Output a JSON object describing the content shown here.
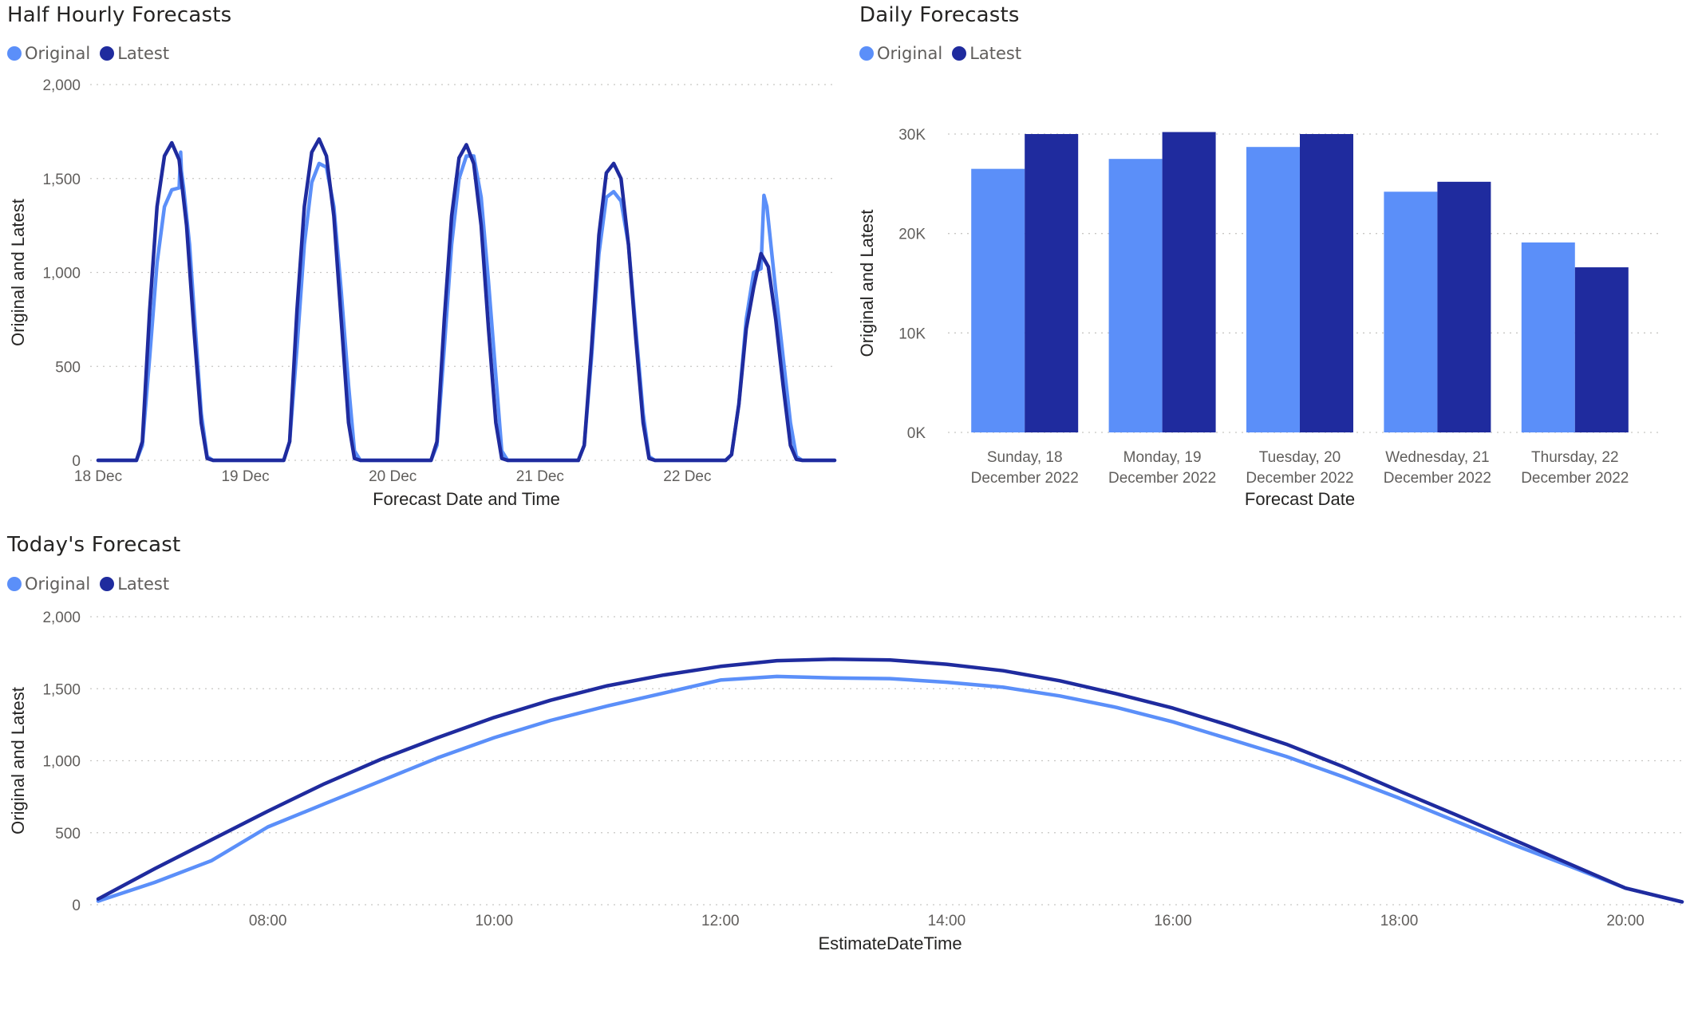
{
  "colors": {
    "original": "#5b8ff9",
    "latest": "#1f2b9e"
  },
  "chart_data": [
    {
      "id": "half_hourly",
      "type": "line",
      "title": "Half Hourly Forecasts",
      "legend": [
        "Original",
        "Latest"
      ],
      "legend_position": "top-left",
      "xlabel": "Forecast Date and Time",
      "ylabel": "Original and Latest",
      "ylim": [
        0,
        2000
      ],
      "yticks": [
        0,
        500,
        1000,
        1500,
        2000
      ],
      "ytick_labels": [
        "0",
        "500",
        "1,000",
        "1,500",
        "2,000"
      ],
      "xticks": [
        0,
        1,
        2,
        3,
        4
      ],
      "xtick_labels": [
        "18 Dec",
        "19 Dec",
        "20 Dec",
        "21 Dec",
        "22 Dec"
      ],
      "xlim": [
        0,
        5.0
      ],
      "grid": true,
      "series": [
        {
          "name": "Original",
          "x": [
            0,
            0.26,
            0.3,
            0.35,
            0.4,
            0.45,
            0.5,
            0.55,
            0.56,
            0.565,
            0.58,
            0.62,
            0.66,
            0.7,
            0.74,
            0.78,
            0.85,
            1.0,
            1.26,
            1.3,
            1.35,
            1.4,
            1.45,
            1.5,
            1.55,
            1.6,
            1.65,
            1.7,
            1.74,
            1.78,
            1.85,
            2.0,
            2.26,
            2.3,
            2.35,
            2.4,
            2.45,
            2.5,
            2.55,
            2.6,
            2.65,
            2.7,
            2.74,
            2.78,
            2.85,
            3.0,
            3.26,
            3.3,
            3.35,
            3.4,
            3.45,
            3.5,
            3.55,
            3.6,
            3.65,
            3.7,
            3.74,
            3.78,
            3.85,
            4.0,
            4.26,
            4.3,
            4.35,
            4.4,
            4.45,
            4.5,
            4.52,
            4.54,
            4.56,
            4.6,
            4.65,
            4.7,
            4.74,
            4.78,
            4.85,
            5.0
          ],
          "y": [
            0,
            0,
            80,
            550,
            1050,
            1350,
            1440,
            1450,
            1640,
            1540,
            1450,
            1150,
            700,
            250,
            20,
            0,
            0,
            0,
            0,
            100,
            600,
            1150,
            1480,
            1580,
            1560,
            1350,
            900,
            400,
            50,
            0,
            0,
            0,
            0,
            80,
            600,
            1150,
            1500,
            1620,
            1620,
            1400,
            950,
            450,
            50,
            0,
            0,
            0,
            0,
            80,
            550,
            1100,
            1400,
            1430,
            1380,
            1150,
            700,
            250,
            20,
            0,
            0,
            0,
            0,
            30,
            300,
            750,
            1000,
            1020,
            1410,
            1350,
            1200,
            900,
            550,
            200,
            20,
            0,
            0,
            0
          ]
        },
        {
          "name": "Latest",
          "x": [
            0,
            0.26,
            0.3,
            0.35,
            0.4,
            0.45,
            0.5,
            0.55,
            0.6,
            0.65,
            0.7,
            0.74,
            0.78,
            0.85,
            1.0,
            1.26,
            1.3,
            1.35,
            1.4,
            1.45,
            1.5,
            1.55,
            1.6,
            1.65,
            1.7,
            1.74,
            1.78,
            1.85,
            2.0,
            2.26,
            2.3,
            2.35,
            2.4,
            2.45,
            2.5,
            2.55,
            2.6,
            2.65,
            2.7,
            2.74,
            2.78,
            2.85,
            3.0,
            3.26,
            3.3,
            3.35,
            3.4,
            3.45,
            3.5,
            3.55,
            3.6,
            3.65,
            3.7,
            3.74,
            3.78,
            3.85,
            4.0,
            4.26,
            4.3,
            4.35,
            4.4,
            4.45,
            4.5,
            4.55,
            4.6,
            4.65,
            4.7,
            4.74,
            4.78,
            4.85,
            5.0
          ],
          "y": [
            0,
            0,
            100,
            800,
            1350,
            1620,
            1690,
            1600,
            1250,
            700,
            200,
            10,
            0,
            0,
            0,
            0,
            100,
            800,
            1350,
            1640,
            1710,
            1620,
            1300,
            750,
            200,
            10,
            0,
            0,
            0,
            0,
            100,
            750,
            1300,
            1610,
            1680,
            1580,
            1250,
            700,
            200,
            10,
            0,
            0,
            0,
            0,
            80,
            600,
            1200,
            1530,
            1580,
            1500,
            1150,
            650,
            200,
            10,
            0,
            0,
            0,
            0,
            30,
            300,
            700,
            920,
            1100,
            1030,
            750,
            400,
            80,
            5,
            0,
            0,
            0
          ]
        }
      ]
    },
    {
      "id": "daily",
      "type": "bar",
      "title": "Daily Forecasts",
      "legend": [
        "Original",
        "Latest"
      ],
      "legend_position": "top-left",
      "xlabel": "Forecast Date",
      "ylabel": "Original and Latest",
      "ylim": [
        0,
        30000
      ],
      "yticks": [
        0,
        10000,
        20000,
        30000
      ],
      "ytick_labels": [
        "0K",
        "10K",
        "20K",
        "30K"
      ],
      "grid": true,
      "categories": [
        [
          "Sunday, 18",
          "December 2022"
        ],
        [
          "Monday, 19",
          "December 2022"
        ],
        [
          "Tuesday, 20",
          "December 2022"
        ],
        [
          "Wednesday, 21",
          "December 2022"
        ],
        [
          "Thursday, 22",
          "December 2022"
        ]
      ],
      "series": [
        {
          "name": "Original",
          "values": [
            26500,
            27500,
            28700,
            24200,
            19100
          ]
        },
        {
          "name": "Latest",
          "values": [
            30000,
            30200,
            30000,
            25200,
            16600
          ]
        }
      ]
    },
    {
      "id": "today",
      "type": "line",
      "title": "Today's Forecast",
      "legend": [
        "Original",
        "Latest"
      ],
      "legend_position": "top-left",
      "xlabel": "EstimateDateTime",
      "ylabel": "Original and Latest",
      "ylim": [
        0,
        2000
      ],
      "yticks": [
        0,
        500,
        1000,
        1500,
        2000
      ],
      "ytick_labels": [
        "0",
        "500",
        "1,000",
        "1,500",
        "2,000"
      ],
      "xlim": [
        6.5,
        20.5
      ],
      "xticks": [
        8,
        10,
        12,
        14,
        16,
        18,
        20
      ],
      "xtick_labels": [
        "08:00",
        "10:00",
        "12:00",
        "14:00",
        "16:00",
        "18:00",
        "20:00"
      ],
      "grid": true,
      "series": [
        {
          "name": "Original",
          "x": [
            6.5,
            7.0,
            7.5,
            8.0,
            8.5,
            9.0,
            9.5,
            10.0,
            10.5,
            11.0,
            11.5,
            12.0,
            12.5,
            13.0,
            13.5,
            14.0,
            14.5,
            15.0,
            15.5,
            16.0,
            16.5,
            17.0,
            17.5,
            18.0,
            18.5,
            19.0,
            19.5,
            20.0,
            20.5
          ],
          "y": [
            25,
            155,
            305,
            540,
            700,
            860,
            1020,
            1160,
            1280,
            1380,
            1470,
            1560,
            1585,
            1575,
            1570,
            1545,
            1510,
            1450,
            1370,
            1270,
            1150,
            1030,
            890,
            740,
            580,
            420,
            270,
            115,
            20
          ]
        },
        {
          "name": "Latest",
          "x": [
            6.5,
            7.0,
            7.5,
            8.0,
            8.5,
            9.0,
            9.5,
            10.0,
            10.5,
            11.0,
            11.5,
            12.0,
            12.5,
            13.0,
            13.5,
            14.0,
            14.5,
            15.0,
            15.5,
            16.0,
            16.5,
            17.0,
            17.5,
            18.0,
            18.5,
            19.0,
            19.5,
            20.0,
            20.5
          ],
          "y": [
            40,
            250,
            450,
            650,
            840,
            1010,
            1160,
            1300,
            1420,
            1520,
            1595,
            1655,
            1695,
            1705,
            1700,
            1670,
            1625,
            1555,
            1465,
            1365,
            1245,
            1115,
            960,
            790,
            625,
            455,
            285,
            115,
            20
          ]
        }
      ]
    }
  ]
}
